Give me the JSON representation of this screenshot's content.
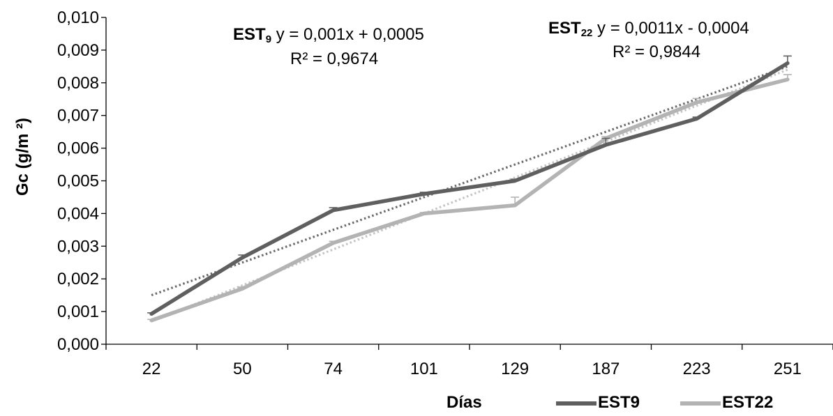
{
  "chart_data": {
    "type": "line",
    "xlabel": "Días",
    "ylabel": "Gc (g/m ²)",
    "categories": [
      "22",
      "50",
      "74",
      "101",
      "129",
      "187",
      "223",
      "251"
    ],
    "ylim": [
      0,
      0.01
    ],
    "yticks": [
      "0,000",
      "0,001",
      "0,002",
      "0,003",
      "0,004",
      "0,005",
      "0,006",
      "0,007",
      "0,008",
      "0,009",
      "0,010"
    ],
    "grid": false,
    "legend_position": "bottom",
    "series": [
      {
        "name": "EST9",
        "color": "#5f5f5f",
        "values": [
          0.00093,
          0.00265,
          0.0041,
          0.0046,
          0.005,
          0.0061,
          0.0069,
          0.0086
        ],
        "errors": [
          3e-05,
          8e-05,
          8e-05,
          5e-05,
          5e-05,
          0.0002,
          5e-05,
          0.00022
        ],
        "trendline": {
          "slope": 0.001,
          "intercept": 0.0005,
          "equation": "y = 0,001x + 0,0005",
          "r2": "R² = 0,9674",
          "label_main": "EST",
          "label_sub": "9"
        }
      },
      {
        "name": "EST22",
        "color": "#b3b3b3",
        "values": [
          0.00073,
          0.0017,
          0.0031,
          0.004,
          0.00425,
          0.0063,
          0.0074,
          0.0081
        ],
        "errors": [
          3e-05,
          5e-05,
          5e-05,
          3e-05,
          0.00025,
          5e-05,
          0.00012,
          0.00015
        ],
        "trendline": {
          "slope": 0.0011,
          "intercept": -0.0004,
          "equation": "y = 0,0011x - 0,0004",
          "r2": "R² = 0,9844",
          "label_main": "EST",
          "label_sub": "22"
        }
      }
    ]
  }
}
